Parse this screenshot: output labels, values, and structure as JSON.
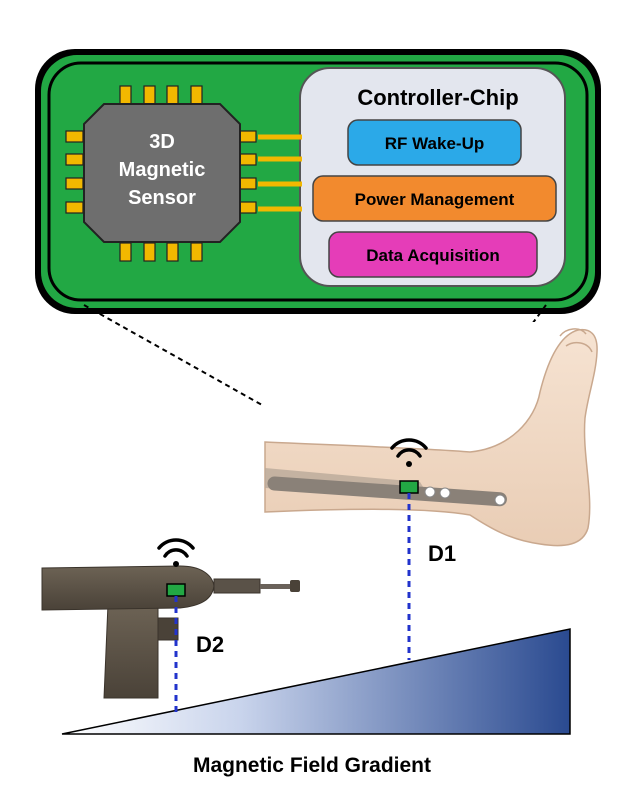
{
  "sensor": {
    "lines": [
      "3D",
      "Magnetic",
      "Sensor"
    ]
  },
  "controller": {
    "title": "Controller-Chip",
    "blocks": [
      {
        "label": "RF Wake-Up",
        "color": "#2ba9e8"
      },
      {
        "label": "Power Management",
        "color": "#f28a2e"
      },
      {
        "label": "Data Acquisition",
        "color": "#e53db8"
      }
    ]
  },
  "board": {
    "pcb_color": "#22a844",
    "pin_color": "#f2b800",
    "chip_color": "#6e6e6e",
    "panel_color": "#e3e6ee"
  },
  "distances": {
    "leg": "D1",
    "drill": "D2"
  },
  "gradient": {
    "label": "Magnetic Field Gradient",
    "color_start": "#ffffff",
    "color_end": "#2a4a90"
  },
  "icons": [
    "wifi-icon",
    "sensor-chip-icon",
    "leg-implant-illustration",
    "surgical-drill-illustration"
  ]
}
